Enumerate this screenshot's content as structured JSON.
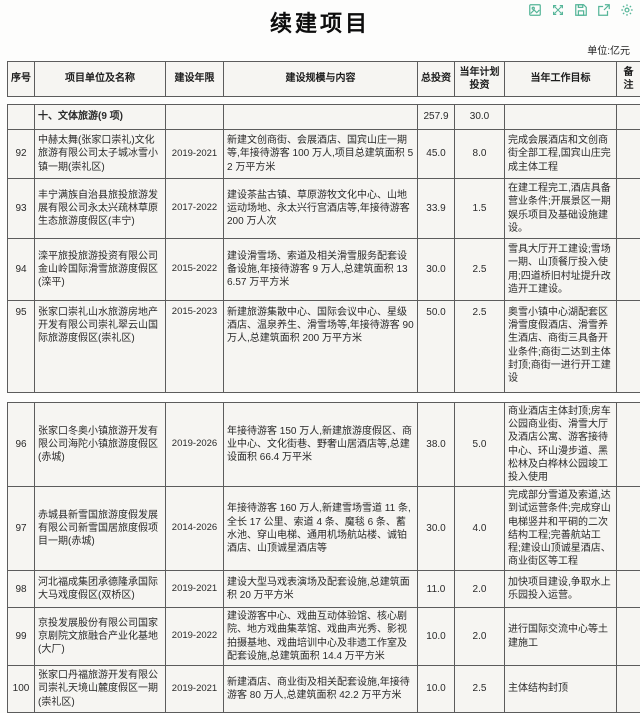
{
  "page": {
    "title": "续建项目",
    "unit_label": "单位:亿元"
  },
  "toolbar": {
    "accent_color": "#55b598",
    "icons": [
      "image-icon",
      "fullscreen-icon",
      "save-icon",
      "share-icon",
      "settings-icon"
    ]
  },
  "table": {
    "border_color": "#5c5c5c",
    "columns": [
      "序号",
      "项目单位及名称",
      "建设年限",
      "建设规模与内容",
      "总投资",
      "当年计划投资",
      "当年工作目标",
      "备注"
    ],
    "sections": [
      {
        "rows": [
          {
            "num": "",
            "name": "十、文体旅游(9 项)",
            "years": "",
            "content": "",
            "total": "257.9",
            "planned": "30.0",
            "goal": "",
            "remark": "",
            "bold": true
          },
          {
            "num": "92",
            "name": "中赫太舞(张家口崇礼)文化旅游有限公司太子城冰雪小镇一期(崇礼区)",
            "years": "2019-2021",
            "content": "新建文创商街、会展酒店、国宾山庄一期等,年接待游客 100 万人,项目总建筑面积 52 万平方米",
            "total": "45.0",
            "planned": "8.0",
            "goal": "完成会展酒店和文创商街全部工程,国宾山庄完成主体工程",
            "remark": "",
            "bold": false
          },
          {
            "num": "93",
            "name": "丰宁满族自治县旅投旅游发展有限公司永太兴疏林草原生态旅游度假区(丰宁)",
            "years": "2017-2022",
            "content": "建设茶盐古镇、草原游牧文化中心、山地运动场地、永太兴行宫酒店等,年接待游客 200 万人次",
            "total": "33.9",
            "planned": "1.5",
            "goal": "在建工程完工,酒店具备营业条件;开展景区一期娱乐项目及基础设施建设。",
            "remark": "",
            "bold": false
          },
          {
            "num": "94",
            "name": "滦平旅投旅游投资有限公司金山岭国际滑雪旅游度假区(滦平)",
            "years": "2015-2022",
            "content": "建设滑雪场、索道及相关滑雪服务配套设备设施,年接待游客 9 万人,总建筑面积 136.57 万平方米",
            "total": "30.0",
            "planned": "2.5",
            "goal": "雪具大厅开工建设;雪场一期、山顶餐厅投入使用;四道桥旧村址提升改造开工建设。",
            "remark": "",
            "bold": false
          },
          {
            "num": "95",
            "name": "张家口崇礼山水旅游房地产开发有限公司崇礼翠云山国际旅游度假区(崇礼区)",
            "years": "2015-2023",
            "content": "新建旅游集散中心、国际会议中心、星级酒店、温泉养生、滑雪场等,年接待游客 90 万人,总建筑面积 200 万平方米",
            "total": "50.0",
            "planned": "2.5",
            "goal": "奥雪小镇中心湖配套区滑雪度假酒店、滑雪养生酒店、商街三具备开业条件;商街二达到主体封顶;商街一进行开工建设",
            "remark": "",
            "bold": false
          }
        ]
      },
      {
        "rows": [
          {
            "num": "96",
            "name": "张家口冬奥小镇旅游开发有限公司海陀小镇旅游度假区(赤城)",
            "years": "2019-2026",
            "content": "年接待游客 150 万人,新建旅游度假区、商业中心、文化街巷、野奢山居酒店等,总建设面积 66.4 万平米",
            "total": "38.0",
            "planned": "5.0",
            "goal": "商业酒店主体封顶;房车公园商业街、滑雪大厅及酒店公寓、游客接待中心、环山漫步道、黑松林及白桦林公园竣工投入使用",
            "remark": "",
            "bold": false
          },
          {
            "num": "97",
            "name": "赤城县新雪国旅游度假发展有限公司新雪国居旅度假项目一期(赤城)",
            "years": "2014-2026",
            "content": "年接待游客 160 万人,新建雪场雪道 11 条,全长 17 公里、索道 4 条、魔毯 6 条、蓄水池、穿山电梯、通用机场航站楼、诚铂酒店、山顶诚星酒店等",
            "total": "30.0",
            "planned": "4.0",
            "goal": "完成部分雪道及索道,达到试运营条件;完成穿山电梯竖井和平硐的二次结构工程;完善航站工程;建设山顶诚星酒店、商业街区等工程",
            "remark": "",
            "bold": false
          },
          {
            "num": "98",
            "name": "河北福成集团承德隆承国际大马戏度假区(双桥区)",
            "years": "2019-2021",
            "content": "建设大型马戏表演场及配套设施,总建筑面积 20 万平方米",
            "total": "11.0",
            "planned": "2.0",
            "goal": "加快项目建设,争取水上乐园投入运营。",
            "remark": "",
            "bold": false
          },
          {
            "num": "99",
            "name": "京投发展股份有限公司国家京剧院文旅融合产业化基地(大厂)",
            "years": "2019-2022",
            "content": "建设游客中心、戏曲互动体验馆、核心剧院、地方戏曲集萃馆、戏曲声光秀、影视拍摄基地、戏曲培训中心及非遗工作室及配套设施,总建筑面积 14.4 万平方米",
            "total": "10.0",
            "planned": "2.0",
            "goal": "进行国际交流中心等土建施工",
            "remark": "",
            "bold": false
          },
          {
            "num": "100",
            "name": "张家口丹福旅游开发有限公司崇礼天境山麓度假区一期(崇礼区)",
            "years": "2019-2021",
            "content": "新建酒店、商业街及相关配套设施,年接待游客 80 万人,总建筑面积 42.2 万平方米",
            "total": "10.0",
            "planned": "2.5",
            "goal": "主体结构封顶",
            "remark": "",
            "bold": false
          }
        ]
      }
    ]
  }
}
